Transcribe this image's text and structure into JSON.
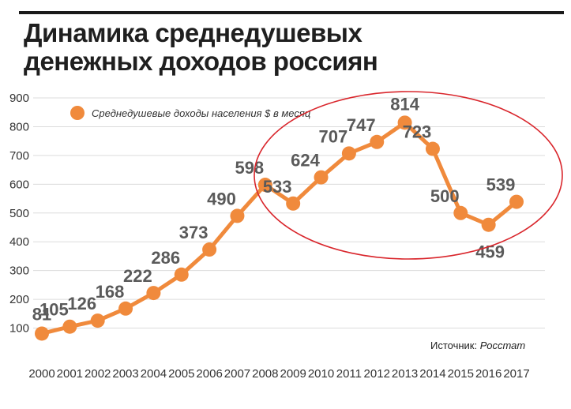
{
  "title_lines": [
    "Динамика среднедушевых",
    "денежных доходов россиян"
  ],
  "legend": {
    "label": "Среднедушевые доходы населения $ в месяц"
  },
  "source": {
    "prefix": "Источник: ",
    "value": "Росстат"
  },
  "colors": {
    "series": "#f08a3c",
    "grid": "#dcdcdc",
    "highlight": "#d9262c",
    "label": "#5a5a5a"
  },
  "chart_data": {
    "type": "line",
    "title": "Динамика среднедушевых денежных доходов россиян",
    "x": [
      "2000",
      "2001",
      "2002",
      "2003",
      "2004",
      "2005",
      "2006",
      "2007",
      "2008",
      "2009",
      "2010",
      "2011",
      "2012",
      "2013",
      "2014",
      "2015",
      "2016",
      "2017"
    ],
    "series": [
      {
        "name": "Среднедушевые доходы населения $ в месяц",
        "values": [
          81,
          105,
          126,
          168,
          222,
          286,
          373,
          490,
          598,
          533,
          624,
          707,
          747,
          814,
          723,
          500,
          459,
          539
        ]
      }
    ],
    "ylim": [
      0,
      900
    ],
    "yticks": [
      100,
      200,
      300,
      400,
      500,
      600,
      700,
      800,
      900
    ],
    "grid": "horizontal",
    "legend_position": "top-left",
    "data_labels": true,
    "annotation": "red ellipse around 2008–2017"
  }
}
